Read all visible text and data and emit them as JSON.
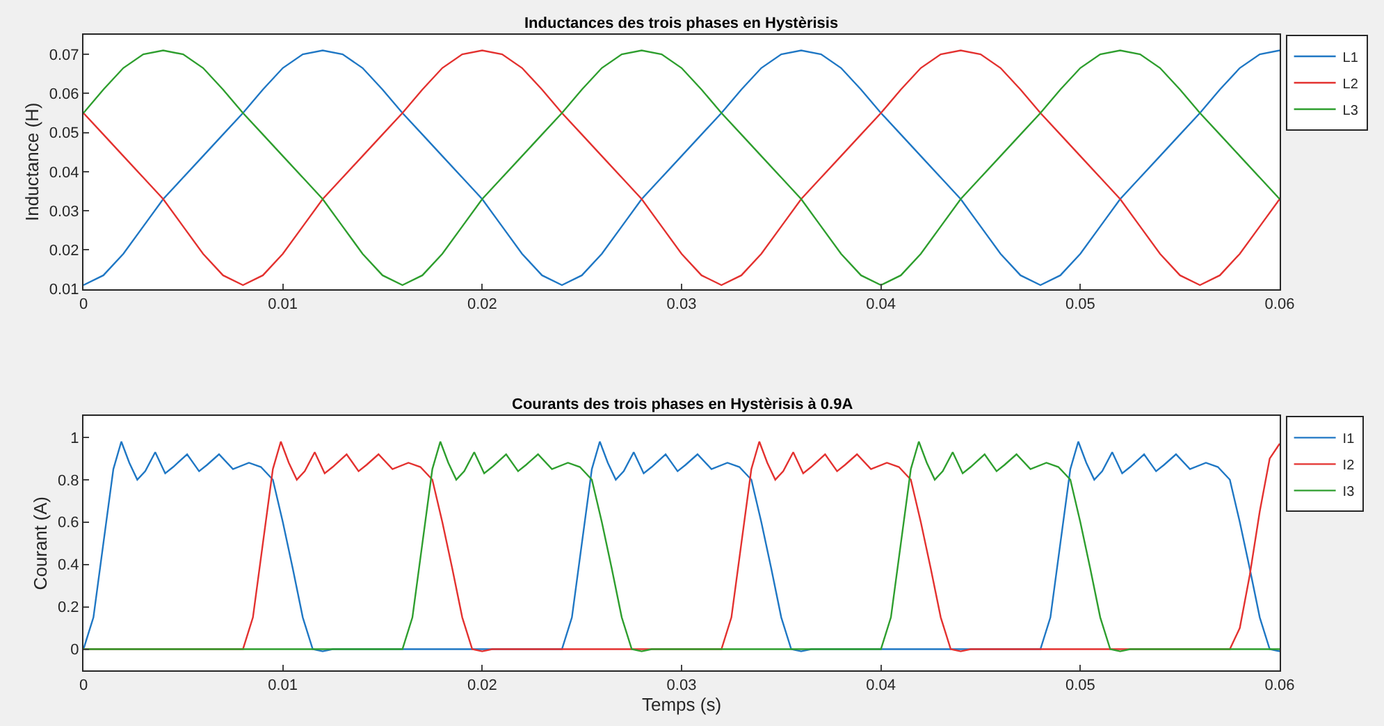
{
  "chart_data": [
    {
      "type": "line",
      "title": "Inductances des trois phases en Hystèrisis",
      "ylabel": "Inductance (H)",
      "xlim": [
        0,
        0.06
      ],
      "xticks": [
        0,
        0.01,
        0.02,
        0.03,
        0.04,
        0.05,
        0.06
      ],
      "ylim": [
        0.01,
        0.075
      ],
      "yticks": [
        0.01,
        0.02,
        0.03,
        0.04,
        0.05,
        0.06,
        0.07
      ],
      "grid": false,
      "legend": "top right",
      "marker": "none",
      "line_style": "solid",
      "x": [
        0,
        0.001,
        0.002,
        0.003,
        0.004,
        0.005,
        0.006,
        0.007,
        0.008,
        0.009,
        0.01,
        0.011,
        0.012,
        0.013,
        0.014,
        0.015,
        0.016,
        0.017,
        0.018,
        0.019,
        0.02,
        0.021,
        0.022,
        0.023,
        0.024,
        0.025,
        0.026,
        0.027,
        0.028,
        0.029,
        0.03,
        0.031,
        0.032,
        0.033,
        0.034,
        0.035,
        0.036,
        0.037,
        0.038,
        0.039,
        0.04,
        0.041,
        0.042,
        0.043,
        0.044,
        0.045,
        0.046,
        0.047,
        0.048,
        0.049,
        0.05,
        0.051,
        0.052,
        0.053,
        0.054,
        0.055,
        0.056,
        0.057,
        0.058,
        0.059,
        0.06
      ],
      "series": [
        {
          "name": "L1",
          "color": "#1f77c4",
          "values": [
            0.011,
            0.0135,
            0.019,
            0.026,
            0.033,
            0.0385,
            0.044,
            0.0495,
            0.055,
            0.061,
            0.0665,
            0.07,
            0.071,
            0.07,
            0.0665,
            0.061,
            0.055,
            0.0495,
            0.044,
            0.0385,
            0.033,
            0.026,
            0.019,
            0.0135,
            0.011,
            0.0135,
            0.019,
            0.026,
            0.033,
            0.0385,
            0.044,
            0.0495,
            0.055,
            0.061,
            0.0665,
            0.07,
            0.071,
            0.07,
            0.0665,
            0.061,
            0.055,
            0.0495,
            0.044,
            0.0385,
            0.033,
            0.026,
            0.019,
            0.0135,
            0.011,
            0.0135,
            0.019,
            0.026,
            0.033,
            0.0385,
            0.044,
            0.0495,
            0.055,
            0.061,
            0.0665,
            0.07,
            0.071
          ]
        },
        {
          "name": "L2",
          "color": "#e3312f",
          "values": [
            0.055,
            0.0495,
            0.044,
            0.0385,
            0.033,
            0.026,
            0.019,
            0.0135,
            0.011,
            0.0135,
            0.019,
            0.026,
            0.033,
            0.0385,
            0.044,
            0.0495,
            0.055,
            0.061,
            0.0665,
            0.07,
            0.071,
            0.07,
            0.0665,
            0.061,
            0.055,
            0.0495,
            0.044,
            0.0385,
            0.033,
            0.026,
            0.019,
            0.0135,
            0.011,
            0.0135,
            0.019,
            0.026,
            0.033,
            0.0385,
            0.044,
            0.0495,
            0.055,
            0.061,
            0.0665,
            0.07,
            0.071,
            0.07,
            0.0665,
            0.061,
            0.055,
            0.0495,
            0.044,
            0.0385,
            0.033,
            0.026,
            0.019,
            0.0135,
            0.011,
            0.0135,
            0.019,
            0.026,
            0.033
          ]
        },
        {
          "name": "L3",
          "color": "#2e9e2e",
          "values": [
            0.055,
            0.061,
            0.0665,
            0.07,
            0.071,
            0.07,
            0.0665,
            0.061,
            0.055,
            0.0495,
            0.044,
            0.0385,
            0.033,
            0.026,
            0.019,
            0.0135,
            0.011,
            0.0135,
            0.019,
            0.026,
            0.033,
            0.0385,
            0.044,
            0.0495,
            0.055,
            0.061,
            0.0665,
            0.07,
            0.071,
            0.07,
            0.0665,
            0.061,
            0.055,
            0.0495,
            0.044,
            0.0385,
            0.033,
            0.026,
            0.019,
            0.0135,
            0.011,
            0.0135,
            0.019,
            0.026,
            0.033,
            0.0385,
            0.044,
            0.0495,
            0.055,
            0.061,
            0.0665,
            0.07,
            0.071,
            0.07,
            0.0665,
            0.061,
            0.055,
            0.0495,
            0.044,
            0.0385,
            0.033
          ]
        }
      ]
    },
    {
      "type": "line",
      "title": "Courants des trois phases en Hystèrisis à 0.9A",
      "xlabel": "Temps (s)",
      "ylabel": "Courant (A)",
      "xlim": [
        0,
        0.06
      ],
      "xticks": [
        0,
        0.01,
        0.02,
        0.03,
        0.04,
        0.05,
        0.06
      ],
      "ylim": [
        -0.1,
        1.1
      ],
      "yticks": [
        0,
        0.2,
        0.4,
        0.6,
        0.8,
        1
      ],
      "grid": false,
      "legend": "top right",
      "marker": "none",
      "line_style": "solid",
      "series": [
        {
          "name": "I1",
          "color": "#1f77c4",
          "x": [
            0,
            0.0005,
            0.001,
            0.0015,
            0.0019,
            0.0023,
            0.0027,
            0.0031,
            0.0036,
            0.0041,
            0.0045,
            0.0052,
            0.0058,
            0.0062,
            0.0068,
            0.0075,
            0.0083,
            0.0089,
            0.0095,
            0.01,
            0.0105,
            0.011,
            0.0115,
            0.012,
            0.0125,
            0.024,
            0.0245,
            0.025,
            0.0255,
            0.0259,
            0.0263,
            0.0267,
            0.0271,
            0.0276,
            0.0281,
            0.0285,
            0.0292,
            0.0298,
            0.0302,
            0.0308,
            0.0315,
            0.0323,
            0.0329,
            0.0335,
            0.034,
            0.0345,
            0.035,
            0.0355,
            0.036,
            0.0365,
            0.048,
            0.0485,
            0.049,
            0.0495,
            0.0499,
            0.0503,
            0.0507,
            0.0511,
            0.0516,
            0.0521,
            0.0525,
            0.0532,
            0.0538,
            0.0542,
            0.0548,
            0.0555,
            0.0563,
            0.0569,
            0.0575,
            0.058,
            0.0585,
            0.059,
            0.0595,
            0.06
          ],
          "values": [
            0,
            0.15,
            0.5,
            0.85,
            0.98,
            0.88,
            0.8,
            0.84,
            0.93,
            0.83,
            0.86,
            0.92,
            0.84,
            0.87,
            0.92,
            0.85,
            0.88,
            0.86,
            0.8,
            0.6,
            0.38,
            0.15,
            0,
            -0.01,
            0,
            0,
            0.15,
            0.5,
            0.85,
            0.98,
            0.88,
            0.8,
            0.84,
            0.93,
            0.83,
            0.86,
            0.92,
            0.84,
            0.87,
            0.92,
            0.85,
            0.88,
            0.86,
            0.8,
            0.6,
            0.38,
            0.15,
            0,
            -0.01,
            0,
            0,
            0.15,
            0.5,
            0.85,
            0.98,
            0.88,
            0.8,
            0.84,
            0.93,
            0.83,
            0.86,
            0.92,
            0.84,
            0.87,
            0.92,
            0.85,
            0.88,
            0.86,
            0.8,
            0.6,
            0.38,
            0.15,
            0,
            -0.01
          ]
        },
        {
          "name": "I2",
          "color": "#e3312f",
          "x": [
            0,
            0.008,
            0.0085,
            0.009,
            0.0095,
            0.0099,
            0.0103,
            0.0107,
            0.0111,
            0.0116,
            0.0121,
            0.0125,
            0.0132,
            0.0138,
            0.0142,
            0.0148,
            0.0155,
            0.0163,
            0.0169,
            0.0175,
            0.018,
            0.0185,
            0.019,
            0.0195,
            0.02,
            0.0205,
            0.032,
            0.0325,
            0.033,
            0.0335,
            0.0339,
            0.0343,
            0.0347,
            0.0351,
            0.0356,
            0.0361,
            0.0365,
            0.0372,
            0.0378,
            0.0382,
            0.0388,
            0.0395,
            0.0403,
            0.0409,
            0.0415,
            0.042,
            0.0425,
            0.043,
            0.0435,
            0.044,
            0.0445,
            0.0575,
            0.058,
            0.0585,
            0.059,
            0.0595,
            0.06
          ],
          "values": [
            0,
            0,
            0.15,
            0.5,
            0.85,
            0.98,
            0.88,
            0.8,
            0.84,
            0.93,
            0.83,
            0.86,
            0.92,
            0.84,
            0.87,
            0.92,
            0.85,
            0.88,
            0.86,
            0.8,
            0.6,
            0.38,
            0.15,
            0,
            -0.01,
            0,
            0,
            0.15,
            0.5,
            0.85,
            0.98,
            0.88,
            0.8,
            0.84,
            0.93,
            0.83,
            0.86,
            0.92,
            0.84,
            0.87,
            0.92,
            0.85,
            0.88,
            0.86,
            0.8,
            0.6,
            0.38,
            0.15,
            0,
            -0.01,
            0,
            0,
            0.1,
            0.35,
            0.65,
            0.9,
            0.97
          ]
        },
        {
          "name": "I3",
          "color": "#2e9e2e",
          "x": [
            0,
            0.016,
            0.0165,
            0.017,
            0.0175,
            0.0179,
            0.0183,
            0.0187,
            0.0191,
            0.0196,
            0.0201,
            0.0205,
            0.0212,
            0.0218,
            0.0222,
            0.0228,
            0.0235,
            0.0243,
            0.0249,
            0.0255,
            0.026,
            0.0265,
            0.027,
            0.0275,
            0.028,
            0.0285,
            0.04,
            0.0405,
            0.041,
            0.0415,
            0.0419,
            0.0423,
            0.0427,
            0.0431,
            0.0436,
            0.0441,
            0.0445,
            0.0452,
            0.0458,
            0.0462,
            0.0468,
            0.0475,
            0.0483,
            0.0489,
            0.0495,
            0.05,
            0.0505,
            0.051,
            0.0515,
            0.052,
            0.0525,
            0.06
          ],
          "values": [
            0,
            0,
            0.15,
            0.5,
            0.85,
            0.98,
            0.88,
            0.8,
            0.84,
            0.93,
            0.83,
            0.86,
            0.92,
            0.84,
            0.87,
            0.92,
            0.85,
            0.88,
            0.86,
            0.8,
            0.6,
            0.38,
            0.15,
            0,
            -0.01,
            0,
            0,
            0.15,
            0.5,
            0.85,
            0.98,
            0.88,
            0.8,
            0.84,
            0.93,
            0.83,
            0.86,
            0.92,
            0.84,
            0.87,
            0.92,
            0.85,
            0.88,
            0.86,
            0.8,
            0.6,
            0.38,
            0.15,
            0,
            -0.01,
            0,
            0
          ]
        }
      ]
    }
  ]
}
